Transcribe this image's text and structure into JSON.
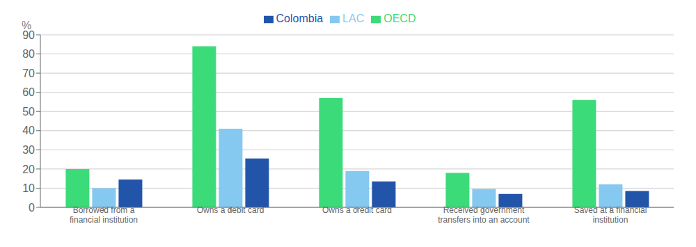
{
  "chart_data": {
    "type": "bar",
    "categories": [
      "Borrowed from a\nfinancial institution",
      "Owns a debit card",
      "Owns a credit card",
      "Received government\ntransfers into an account",
      "Saved at a financial\ninstitution"
    ],
    "series": [
      {
        "name": "OECD",
        "color": "#3CDB7A",
        "values": [
          20,
          84,
          57,
          18,
          56
        ]
      },
      {
        "name": "LAC",
        "color": "#85C8F0",
        "values": [
          10,
          41,
          19,
          9.5,
          12
        ]
      },
      {
        "name": "Colombia",
        "color": "#2255AA",
        "values": [
          14.5,
          25.5,
          13.5,
          7,
          8.5
        ]
      }
    ],
    "ylabel": "%",
    "ylim": [
      0,
      90
    ],
    "yticks": [
      0,
      10,
      20,
      30,
      40,
      50,
      60,
      70,
      80,
      90
    ],
    "grid": true,
    "legend": "top"
  }
}
